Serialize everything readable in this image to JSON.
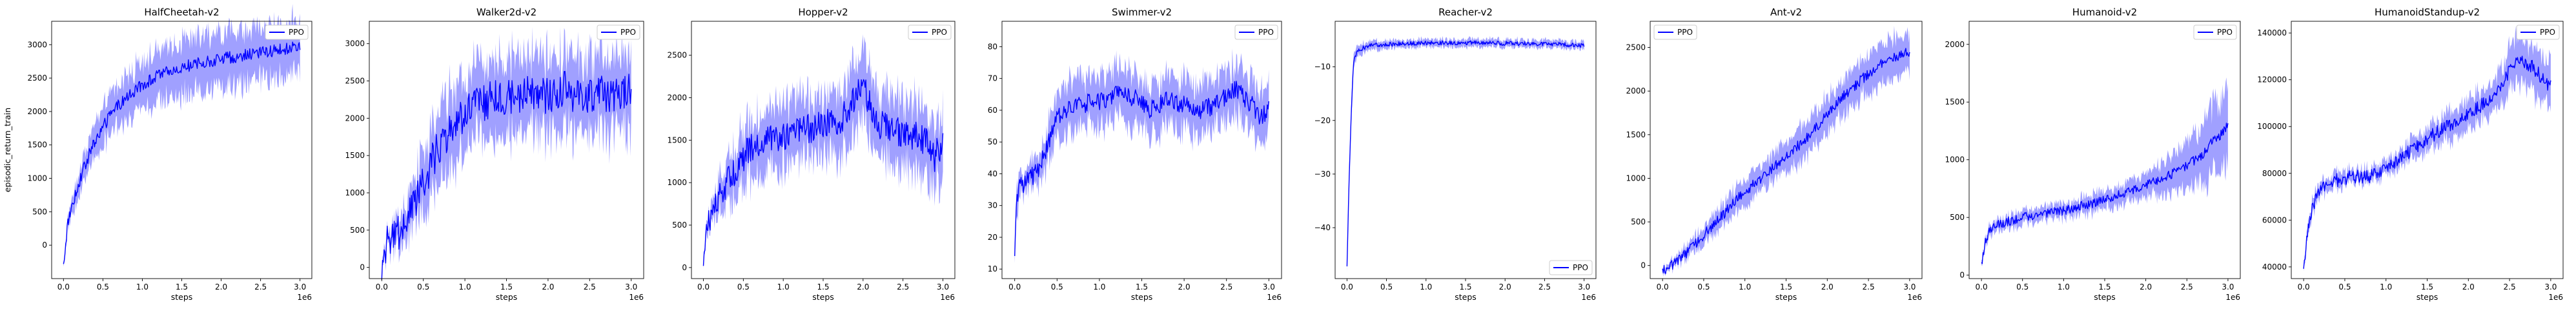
{
  "figure": {
    "x_scale_note": "1e6",
    "legend_label": "PPO",
    "line_color": "#0000ff",
    "band_color": "#8080ff"
  },
  "chart_data": [
    {
      "type": "line",
      "title": "HalfCheetah-v2",
      "xlabel": "steps",
      "ylabel": "episodic_return_train",
      "xlim": [
        -0.15,
        3.15
      ],
      "ylim": [
        -500,
        3350
      ],
      "xticks": [
        0.0,
        0.5,
        1.0,
        1.5,
        2.0,
        2.5,
        3.0
      ],
      "yticks": [
        0,
        500,
        1000,
        1500,
        2000,
        2500,
        3000
      ],
      "xtick_labels": [
        "0.0",
        "0.5",
        "1.0",
        "1.5",
        "2.0",
        "2.5",
        "3.0"
      ],
      "ytick_labels": [
        "0",
        "500",
        "1000",
        "1500",
        "2000",
        "2500",
        "3000"
      ],
      "legend_position": "top-right",
      "series": [
        {
          "name": "PPO",
          "x": [
            0.0,
            0.05,
            0.1,
            0.2,
            0.3,
            0.4,
            0.5,
            0.6,
            0.7,
            0.8,
            1.0,
            1.2,
            1.4,
            1.6,
            1.8,
            2.0,
            2.2,
            2.4,
            2.6,
            2.8,
            3.0
          ],
          "y": [
            -320,
            300,
            560,
            950,
            1280,
            1560,
            1760,
            1960,
            2100,
            2200,
            2400,
            2540,
            2620,
            2690,
            2740,
            2790,
            2820,
            2860,
            2900,
            2930,
            2970
          ],
          "band": [
            30,
            60,
            120,
            180,
            220,
            250,
            280,
            300,
            320,
            340,
            360,
            380,
            400,
            400,
            400,
            400,
            400,
            400,
            400,
            400,
            400
          ],
          "noise": 90
        }
      ]
    },
    {
      "type": "line",
      "title": "Walker2d-v2",
      "xlabel": "steps",
      "xlim": [
        -0.15,
        3.15
      ],
      "ylim": [
        -150,
        3300
      ],
      "xticks": [
        0.0,
        0.5,
        1.0,
        1.5,
        2.0,
        2.5,
        3.0
      ],
      "yticks": [
        0,
        500,
        1000,
        1500,
        2000,
        2500,
        3000
      ],
      "xtick_labels": [
        "0.0",
        "0.5",
        "1.0",
        "1.5",
        "2.0",
        "2.5",
        "3.0"
      ],
      "ytick_labels": [
        "0",
        "500",
        "1000",
        "1500",
        "2000",
        "2500",
        "3000"
      ],
      "legend_position": "top-right",
      "series": [
        {
          "name": "PPO",
          "x": [
            0.0,
            0.05,
            0.1,
            0.2,
            0.3,
            0.4,
            0.5,
            0.6,
            0.7,
            0.8,
            0.9,
            1.0,
            1.2,
            1.4,
            1.6,
            1.8,
            2.0,
            2.2,
            2.4,
            2.6,
            2.8,
            3.0
          ],
          "y": [
            40,
            300,
            380,
            480,
            620,
            850,
            1100,
            1400,
            1650,
            1800,
            1900,
            2050,
            2200,
            2300,
            2250,
            2350,
            2300,
            2400,
            2250,
            2350,
            2300,
            2400
          ],
          "band": [
            40,
            80,
            120,
            200,
            280,
            350,
            400,
            450,
            500,
            500,
            500,
            500,
            500,
            500,
            500,
            500,
            500,
            500,
            500,
            500,
            500,
            500
          ],
          "noise": 250
        }
      ]
    },
    {
      "type": "line",
      "title": "Hopper-v2",
      "xlabel": "steps",
      "xlim": [
        -0.15,
        3.15
      ],
      "ylim": [
        -130,
        2900
      ],
      "xticks": [
        0.0,
        0.5,
        1.0,
        1.5,
        2.0,
        2.5,
        3.0
      ],
      "yticks": [
        0,
        500,
        1000,
        1500,
        2000,
        2500
      ],
      "xtick_labels": [
        "0.0",
        "0.5",
        "1.0",
        "1.5",
        "2.0",
        "2.5",
        "3.0"
      ],
      "ytick_labels": [
        "0",
        "500",
        "1000",
        "1500",
        "2000",
        "2500"
      ],
      "legend_position": "top-right",
      "series": [
        {
          "name": "PPO",
          "x": [
            0.0,
            0.05,
            0.1,
            0.2,
            0.3,
            0.4,
            0.5,
            0.6,
            0.8,
            1.0,
            1.2,
            1.4,
            1.6,
            1.8,
            1.9,
            2.0,
            2.1,
            2.2,
            2.4,
            2.6,
            2.8,
            2.9,
            3.0
          ],
          "y": [
            30,
            500,
            650,
            800,
            1000,
            1150,
            1300,
            1400,
            1500,
            1550,
            1600,
            1650,
            1700,
            1800,
            2000,
            2100,
            1900,
            1700,
            1600,
            1550,
            1500,
            1300,
            1500
          ],
          "band": [
            30,
            80,
            120,
            200,
            250,
            300,
            350,
            350,
            350,
            350,
            350,
            350,
            350,
            400,
            400,
            400,
            400,
            400,
            400,
            400,
            400,
            400,
            400
          ],
          "noise": 180
        }
      ]
    },
    {
      "type": "line",
      "title": "Swimmer-v2",
      "xlabel": "steps",
      "xlim": [
        -0.15,
        3.15
      ],
      "ylim": [
        7,
        88
      ],
      "xticks": [
        0.0,
        0.5,
        1.0,
        1.5,
        2.0,
        2.5,
        3.0
      ],
      "yticks": [
        10,
        20,
        30,
        40,
        50,
        60,
        70,
        80
      ],
      "xtick_labels": [
        "0.0",
        "0.5",
        "1.0",
        "1.5",
        "2.0",
        "2.5",
        "3.0"
      ],
      "ytick_labels": [
        "10",
        "20",
        "30",
        "40",
        "50",
        "60",
        "70",
        "80"
      ],
      "legend_position": "top-right",
      "series": [
        {
          "name": "PPO",
          "x": [
            0.0,
            0.02,
            0.05,
            0.1,
            0.2,
            0.3,
            0.4,
            0.5,
            0.6,
            0.8,
            1.0,
            1.2,
            1.4,
            1.6,
            1.8,
            2.0,
            2.2,
            2.4,
            2.6,
            2.7,
            2.8,
            2.9,
            3.0
          ],
          "y": [
            12,
            30,
            35,
            37,
            39,
            42,
            50,
            57,
            60,
            62,
            63,
            65,
            64,
            60,
            63,
            62,
            60,
            62,
            67,
            64,
            62,
            58,
            60
          ],
          "band": [
            2,
            5,
            4,
            3,
            4,
            5,
            6,
            7,
            8,
            8,
            8,
            8,
            8,
            8,
            8,
            8,
            8,
            8,
            8,
            8,
            8,
            8,
            8
          ],
          "noise": 3
        }
      ]
    },
    {
      "type": "line",
      "title": "Reacher-v2",
      "xlabel": "steps",
      "xlim": [
        -0.15,
        3.15
      ],
      "ylim": [
        -49.5,
        -1.5
      ],
      "xticks": [
        0.0,
        0.5,
        1.0,
        1.5,
        2.0,
        2.5,
        3.0
      ],
      "yticks": [
        -40,
        -30,
        -20,
        -10
      ],
      "xtick_labels": [
        "0.0",
        "0.5",
        "1.0",
        "1.5",
        "2.0",
        "2.5",
        "3.0"
      ],
      "ytick_labels": [
        "−40",
        "−30",
        "−20",
        "−10"
      ],
      "legend_position": "bottom-right",
      "series": [
        {
          "name": "PPO",
          "x": [
            0.0,
            0.02,
            0.05,
            0.08,
            0.1,
            0.15,
            0.2,
            0.3,
            0.5,
            1.0,
            1.5,
            2.0,
            2.5,
            3.0
          ],
          "y": [
            -47,
            -35,
            -20,
            -10,
            -8,
            -7,
            -6.5,
            -6,
            -5.8,
            -5.5,
            -5.5,
            -5.6,
            -5.7,
            -6
          ],
          "band": [
            1,
            2,
            2,
            1.5,
            1,
            1,
            0.8,
            0.8,
            0.7,
            0.7,
            0.7,
            0.7,
            0.7,
            0.7
          ],
          "noise": 0.4
        }
      ]
    },
    {
      "type": "line",
      "title": "Ant-v2",
      "xlabel": "steps",
      "xlim": [
        -0.15,
        3.15
      ],
      "ylim": [
        -150,
        2800
      ],
      "xticks": [
        0.0,
        0.5,
        1.0,
        1.5,
        2.0,
        2.5,
        3.0
      ],
      "yticks": [
        0,
        500,
        1000,
        1500,
        2000,
        2500
      ],
      "xtick_labels": [
        "0.0",
        "0.5",
        "1.0",
        "1.5",
        "2.0",
        "2.5",
        "3.0"
      ],
      "ytick_labels": [
        "0",
        "500",
        "1000",
        "1500",
        "2000",
        "2500"
      ],
      "legend_position": "top-left",
      "series": [
        {
          "name": "PPO",
          "x": [
            0.0,
            0.1,
            0.2,
            0.3,
            0.5,
            0.7,
            1.0,
            1.2,
            1.5,
            1.8,
            2.0,
            2.2,
            2.5,
            2.7,
            3.0
          ],
          "y": [
            -50,
            -10,
            60,
            150,
            350,
            550,
            850,
            1000,
            1250,
            1500,
            1750,
            1950,
            2200,
            2350,
            2450
          ],
          "band": [
            30,
            40,
            60,
            80,
            100,
            120,
            150,
            150,
            180,
            200,
            200,
            200,
            220,
            220,
            220
          ],
          "noise": 60
        }
      ]
    },
    {
      "type": "line",
      "title": "Humanoid-v2",
      "xlabel": "steps",
      "xlim": [
        -0.15,
        3.15
      ],
      "ylim": [
        -30,
        2200
      ],
      "xticks": [
        0.0,
        0.5,
        1.0,
        1.5,
        2.0,
        2.5,
        3.0
      ],
      "yticks": [
        0,
        500,
        1000,
        1500,
        2000
      ],
      "xtick_labels": [
        "0.0",
        "0.5",
        "1.0",
        "1.5",
        "2.0",
        "2.5",
        "3.0"
      ],
      "ytick_labels": [
        "0",
        "500",
        "1000",
        "1500",
        "2000"
      ],
      "legend_position": "top-right",
      "series": [
        {
          "name": "PPO",
          "x": [
            0.0,
            0.05,
            0.1,
            0.2,
            0.5,
            1.0,
            1.5,
            2.0,
            2.3,
            2.5,
            2.7,
            2.8,
            2.9,
            3.0
          ],
          "y": [
            70,
            300,
            380,
            440,
            500,
            560,
            650,
            780,
            870,
            950,
            1050,
            1150,
            1200,
            1300
          ],
          "band": [
            20,
            40,
            50,
            50,
            60,
            60,
            80,
            100,
            150,
            200,
            250,
            300,
            300,
            300
          ],
          "noise": 40
        }
      ]
    },
    {
      "type": "line",
      "title": "HumanoidStandup-v2",
      "xlabel": "steps",
      "xlim": [
        -0.15,
        3.15
      ],
      "ylim": [
        35000,
        145000
      ],
      "xticks": [
        0.0,
        0.5,
        1.0,
        1.5,
        2.0,
        2.5,
        3.0
      ],
      "yticks": [
        40000,
        60000,
        80000,
        100000,
        120000,
        140000
      ],
      "xtick_labels": [
        "0.0",
        "0.5",
        "1.0",
        "1.5",
        "2.0",
        "2.5",
        "3.0"
      ],
      "ytick_labels": [
        "40000",
        "60000",
        "80000",
        "100000",
        "120000",
        "140000"
      ],
      "legend_position": "top-right",
      "series": [
        {
          "name": "PPO",
          "x": [
            0.0,
            0.05,
            0.1,
            0.2,
            0.3,
            0.5,
            0.8,
            1.0,
            1.2,
            1.5,
            1.8,
            2.0,
            2.2,
            2.4,
            2.5,
            2.6,
            2.7,
            2.8,
            2.9,
            3.0
          ],
          "y": [
            40000,
            55000,
            65000,
            72000,
            76000,
            78000,
            79000,
            82000,
            87000,
            95000,
            101000,
            106000,
            110000,
            118000,
            124000,
            128000,
            127000,
            125000,
            120000,
            117000
          ],
          "band": [
            1000,
            3000,
            3000,
            3000,
            3000,
            3000,
            3000,
            3000,
            4000,
            5000,
            6000,
            6000,
            6000,
            8000,
            9000,
            10000,
            10000,
            10000,
            10000,
            10000
          ],
          "noise": 3000
        }
      ]
    }
  ]
}
